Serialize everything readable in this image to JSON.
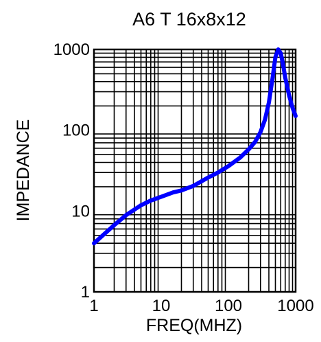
{
  "chart_data": {
    "type": "line",
    "title": "A6 T 16x8x12",
    "xlabel": "FREQ(MHZ)",
    "ylabel": "IMPEDANCE",
    "xscale": "log",
    "yscale": "log",
    "xlim": [
      1,
      1000
    ],
    "ylim": [
      1,
      1000
    ],
    "grid": true,
    "x_ticks": [
      "1",
      "10",
      "100",
      "1000"
    ],
    "y_ticks": [
      "1",
      "10",
      "100",
      "1000"
    ],
    "line_color": "#0000ff",
    "series": [
      {
        "x": [
          1,
          1.5,
          2,
          3,
          5,
          7,
          10,
          15,
          20,
          30,
          50,
          70,
          100,
          150,
          200,
          250,
          300,
          350,
          400,
          450,
          500,
          550,
          600,
          650,
          700,
          800,
          900,
          1000
        ],
        "y": [
          4,
          5.4,
          6.7,
          8.9,
          11.8,
          13.5,
          15,
          17,
          18,
          20.5,
          26,
          30,
          36,
          46,
          58,
          72,
          95,
          135,
          220,
          420,
          800,
          1000,
          900,
          650,
          450,
          270,
          190,
          150
        ]
      }
    ]
  }
}
